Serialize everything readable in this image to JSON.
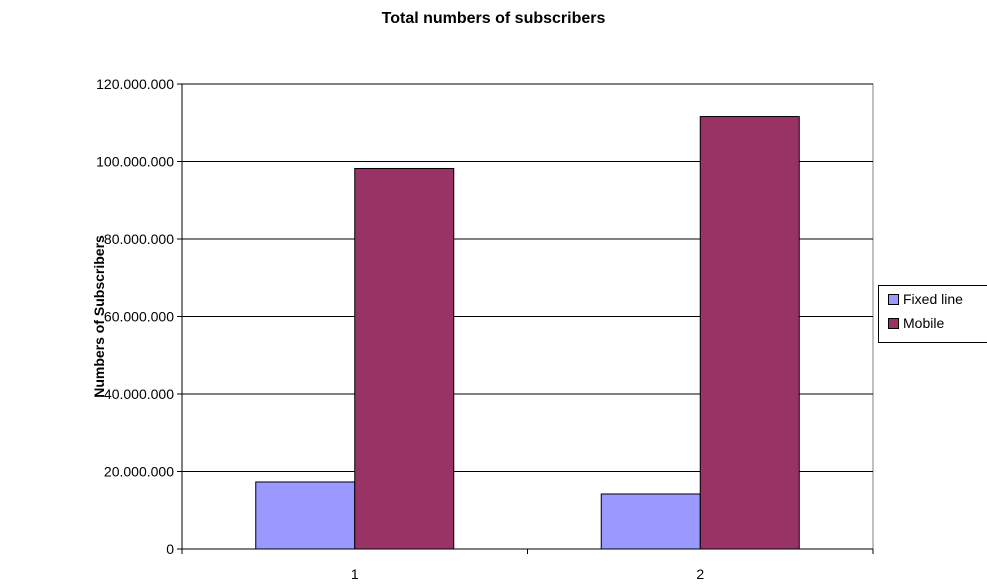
{
  "chart_data": {
    "type": "bar",
    "title": "Total numbers of subscribers",
    "xlabel": "",
    "ylabel": "Numbers of Subscribers",
    "categories": [
      "1",
      "2"
    ],
    "series": [
      {
        "name": "Fixed line",
        "color": "#9999ff",
        "values": [
          17300000,
          14200000
        ]
      },
      {
        "name": "Mobile",
        "color": "#993366",
        "values": [
          98200000,
          111600000
        ]
      }
    ],
    "ylim": [
      0,
      120000000
    ],
    "yticks": [
      0,
      20000000,
      40000000,
      60000000,
      80000000,
      100000000,
      120000000
    ],
    "ytick_labels": [
      "0",
      "20.000.000",
      "40.000.000",
      "60.000.000",
      "80.000.000",
      "100.000.000",
      "120.000.000"
    ],
    "grid": true,
    "legend": "right"
  }
}
